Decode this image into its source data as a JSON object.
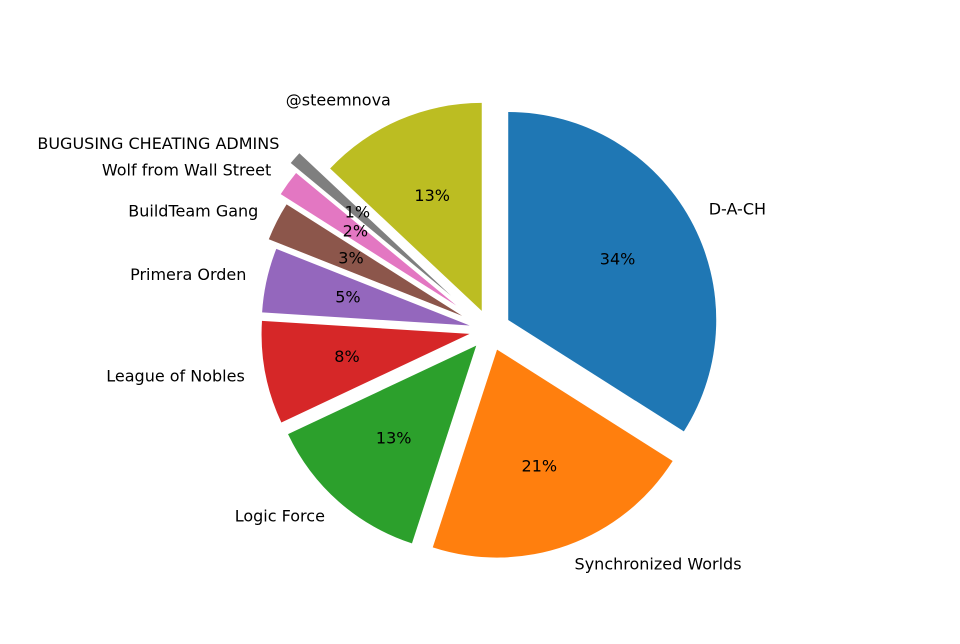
{
  "chart_data": {
    "type": "pie",
    "categories": [
      "D-A-CH",
      "Synchronized Worlds",
      "Logic Force",
      "League of Nobles",
      "Primera Orden",
      "BuildTeam Gang",
      "Wolf from Wall Street",
      "BUGUSING CHEATING ADMINS",
      "@steemnova"
    ],
    "values": [
      34,
      21,
      13,
      8,
      5,
      3,
      2,
      1,
      13
    ],
    "value_labels": [
      "34%",
      "21%",
      "13%",
      "8%",
      "5%",
      "3%",
      "2%",
      "1%",
      "13%"
    ],
    "colors": [
      "#1f77b4",
      "#ff7f0e",
      "#2ca02c",
      "#d62728",
      "#9467bd",
      "#8c564b",
      "#e377c2",
      "#7f7f7f",
      "#bcbd22"
    ],
    "start_angle": 90,
    "clockwise": true
  }
}
